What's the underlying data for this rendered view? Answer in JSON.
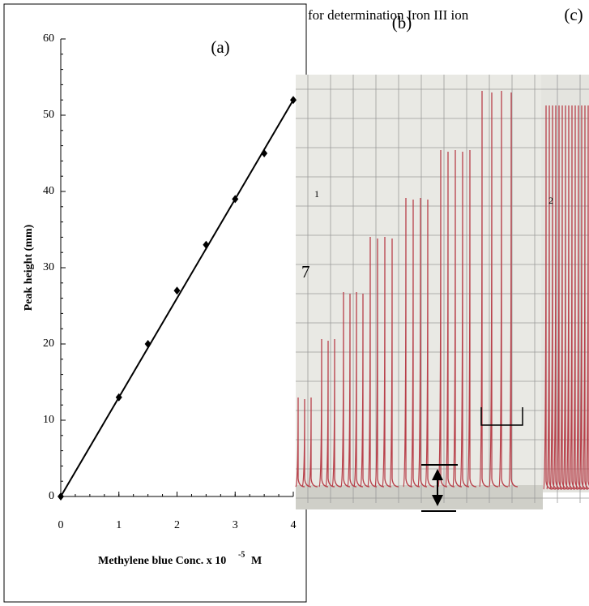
{
  "chart_data": {
    "type": "scatter",
    "panel_label": "(a)",
    "y_label": "Peak height (mm)",
    "x_label": "Methylene blue Conc. x 10",
    "x_label_exponent": "-5",
    "x_label_unit": "M",
    "x": [
      0,
      1,
      1.5,
      2,
      2.5,
      3,
      3.5,
      4
    ],
    "values": [
      0,
      13,
      20,
      27,
      33,
      39,
      45,
      52
    ],
    "color": "#000000",
    "fit": {
      "x": [
        0,
        4
      ],
      "values": [
        0,
        52
      ]
    },
    "xlim": [
      0,
      4
    ],
    "xticks": [
      0,
      1,
      2,
      3,
      4
    ],
    "ylim": [
      0,
      60
    ],
    "yticks": [
      0,
      10,
      20,
      30,
      40,
      50,
      60
    ]
  },
  "photo": {
    "caption": "for determination Iron III ion",
    "label_b": "(b)",
    "label_c": "(c)",
    "marks": [
      "1",
      "7",
      "2"
    ]
  }
}
